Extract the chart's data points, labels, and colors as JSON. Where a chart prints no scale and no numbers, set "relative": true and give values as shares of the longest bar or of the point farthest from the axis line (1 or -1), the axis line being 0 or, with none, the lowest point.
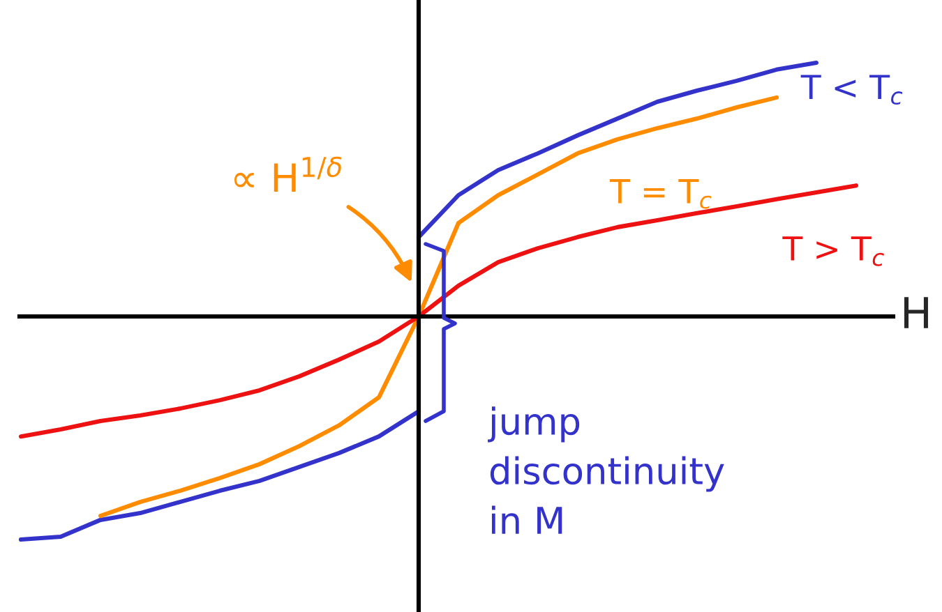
{
  "chart_data": {
    "type": "line",
    "relative": true,
    "xlabel": "H",
    "categories": [
      null,
      null,
      null,
      null,
      null,
      null,
      null,
      null,
      null,
      null,
      null,
      null,
      null,
      null,
      null,
      null,
      null,
      null,
      null,
      null,
      null,
      null
    ],
    "series": [
      {
        "color": "#3333cc",
        "values": [
          -0.879,
          -0.868,
          -0.802,
          -0.775,
          -0.731,
          -0.687,
          -0.648,
          -0.593,
          -0.538,
          -0.473,
          -0.374,
          null,
          null,
          null,
          null,
          null,
          null,
          null,
          null,
          null,
          null,
          null
        ]
      },
      {
        "name": "T < T$_{c}$",
        "color": "#3333cc",
        "values": [
          null,
          null,
          null,
          null,
          null,
          null,
          null,
          null,
          null,
          null,
          0.313,
          0.478,
          0.577,
          0.643,
          0.714,
          0.78,
          0.846,
          0.89,
          0.929,
          0.973,
          1.0,
          null
        ]
      },
      {
        "name": "T = T$_{c}$",
        "color": "#ff8c00",
        "values": [
          null,
          null,
          -0.786,
          -0.731,
          -0.687,
          -0.637,
          -0.582,
          -0.511,
          -0.429,
          -0.319,
          0,
          0.368,
          0.478,
          0.56,
          0.643,
          0.698,
          0.742,
          0.78,
          0.824,
          0.863,
          null,
          null
        ]
      },
      {
        "name": "T > T$_{c}$",
        "color": "#ee1111",
        "values": [
          -0.473,
          -0.445,
          -0.412,
          -0.39,
          -0.363,
          -0.33,
          -0.291,
          -0.236,
          -0.17,
          -0.099,
          0,
          0.121,
          0.214,
          0.269,
          0.313,
          0.352,
          0.379,
          0.407,
          0.434,
          0.462,
          0.489,
          0.516
        ]
      }
    ],
    "annotations": [
      "∝ H$^{1/δ}$",
      "jump\ndiscontinuity\nin M"
    ]
  }
}
